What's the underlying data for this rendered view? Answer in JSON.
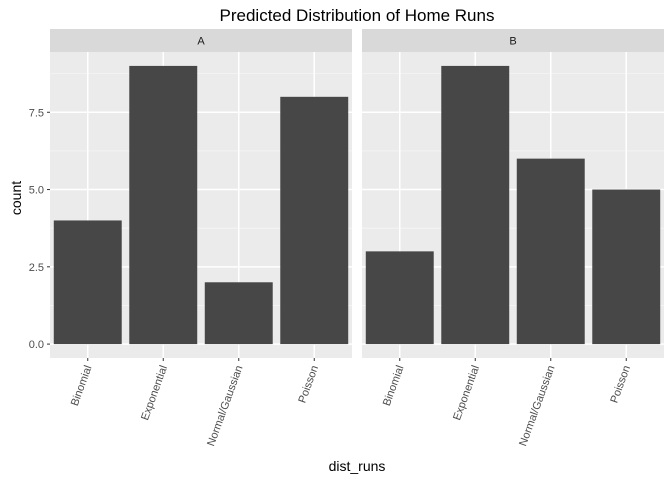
{
  "chart_data": {
    "type": "bar",
    "title": "Predicted Distribution of Home Runs",
    "xlabel": "dist_runs",
    "ylabel": "count",
    "categories": [
      "Binomial",
      "Exponential",
      "Normal/Gaussian",
      "Poisson"
    ],
    "facets": [
      {
        "name": "A",
        "values": [
          4,
          9,
          2,
          8
        ]
      },
      {
        "name": "B",
        "values": [
          3,
          9,
          6,
          5
        ]
      }
    ],
    "ylim": [
      -0.45,
      9.45
    ],
    "yticks": [
      0,
      2.5,
      5,
      7.5
    ],
    "ytick_labels": [
      "0.0",
      "2.5",
      "5.0",
      "7.5"
    ],
    "grid": true,
    "colors": {
      "bar": "#474747",
      "panel_bg": "#ebebeb",
      "strip_bg": "#d9d9d9",
      "grid_major": "#ffffff",
      "grid_minor": "#f5f5f5"
    }
  }
}
